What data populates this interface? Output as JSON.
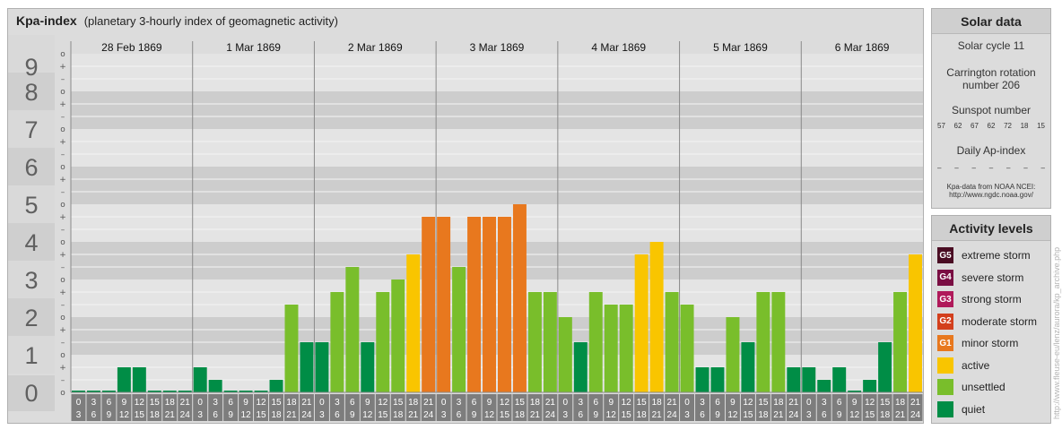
{
  "title": {
    "name": "Kpa-index",
    "subtitle": "(planetary 3-hourly index of geomagnetic activity)"
  },
  "chart_data": {
    "type": "bar",
    "ylim": [
      0,
      9
    ],
    "y_ticks": [
      "0",
      "1",
      "2",
      "3",
      "4",
      "5",
      "6",
      "7",
      "8",
      "9"
    ],
    "sub_ticks": [
      "o",
      "+",
      "–",
      "o",
      "+",
      "–",
      "o",
      "+",
      "–",
      "o",
      "+",
      "–",
      "o",
      "+",
      "–",
      "o",
      "+",
      "–",
      "o",
      "+",
      "–",
      "o",
      "+",
      "–",
      "o",
      "+",
      "–",
      "o"
    ],
    "days": [
      "28 Feb 1869",
      "1 Mar 1869",
      "2 Mar 1869",
      "3 Mar 1869",
      "4 Mar 1869",
      "5 Mar 1869",
      "6 Mar 1869"
    ],
    "interval_starts": [
      "0",
      "3",
      "6",
      "9",
      "12",
      "15",
      "18",
      "21"
    ],
    "interval_ends": [
      "3",
      "6",
      "9",
      "12",
      "15",
      "18",
      "21",
      "24"
    ],
    "values": [
      0,
      0,
      0,
      0.667,
      0.667,
      0,
      0,
      0,
      0.667,
      0.333,
      0,
      0,
      0,
      0.333,
      2.333,
      1.333,
      1.333,
      2.667,
      3.333,
      1.333,
      2.667,
      3,
      3.667,
      4.667,
      4.667,
      3.333,
      4.667,
      4.667,
      4.667,
      5,
      2.667,
      2.667,
      2,
      1.333,
      2.667,
      2.333,
      2.333,
      3.667,
      4,
      2.667,
      2.333,
      0.667,
      0.667,
      2,
      1.333,
      2.667,
      2.667,
      0.667,
      0.667,
      0.333,
      0.667,
      0,
      0.333,
      1.333,
      2.667,
      3.667
    ],
    "colors": {
      "quiet": "#008d46",
      "unsettled": "#79be2b",
      "active": "#f9c500",
      "G1": "#e8781e",
      "G2": "#d33f1c",
      "G3": "#b0195a",
      "G4": "#7a0e43",
      "G5": "#4a0d23"
    }
  },
  "solar": {
    "title": "Solar data",
    "cycle": "Solar cycle 11",
    "carrington_line1": "Carrington rotation",
    "carrington_line2": "number 206",
    "sunspot_label": "Sunspot number",
    "sunspots": [
      "57",
      "62",
      "67",
      "62",
      "72",
      "18",
      "15"
    ],
    "ap_label": "Daily Ap-index",
    "ap_values": [
      "–",
      "–",
      "–",
      "–",
      "–",
      "–",
      "–"
    ],
    "source_line1": "Kpa-data from NOAA NCEI:",
    "source_line2": "http://www.ngdc.noaa.gov/"
  },
  "levels": {
    "title": "Activity levels",
    "items": [
      {
        "badge": "G5",
        "label": "extreme storm",
        "color": "#4a0d23"
      },
      {
        "badge": "G4",
        "label": "severe storm",
        "color": "#7a0e43"
      },
      {
        "badge": "G3",
        "label": "strong storm",
        "color": "#b0195a"
      },
      {
        "badge": "G2",
        "label": "moderate storm",
        "color": "#d33f1c"
      },
      {
        "badge": "G1",
        "label": "minor storm",
        "color": "#e8781e"
      },
      {
        "badge": "",
        "label": "active",
        "color": "#f9c500"
      },
      {
        "badge": "",
        "label": "unsettled",
        "color": "#79be2b"
      },
      {
        "badge": "",
        "label": "quiet",
        "color": "#008d46"
      }
    ]
  },
  "watermark": "http://www.fleuse-eu/lenz/aurora/kp_archive.php"
}
